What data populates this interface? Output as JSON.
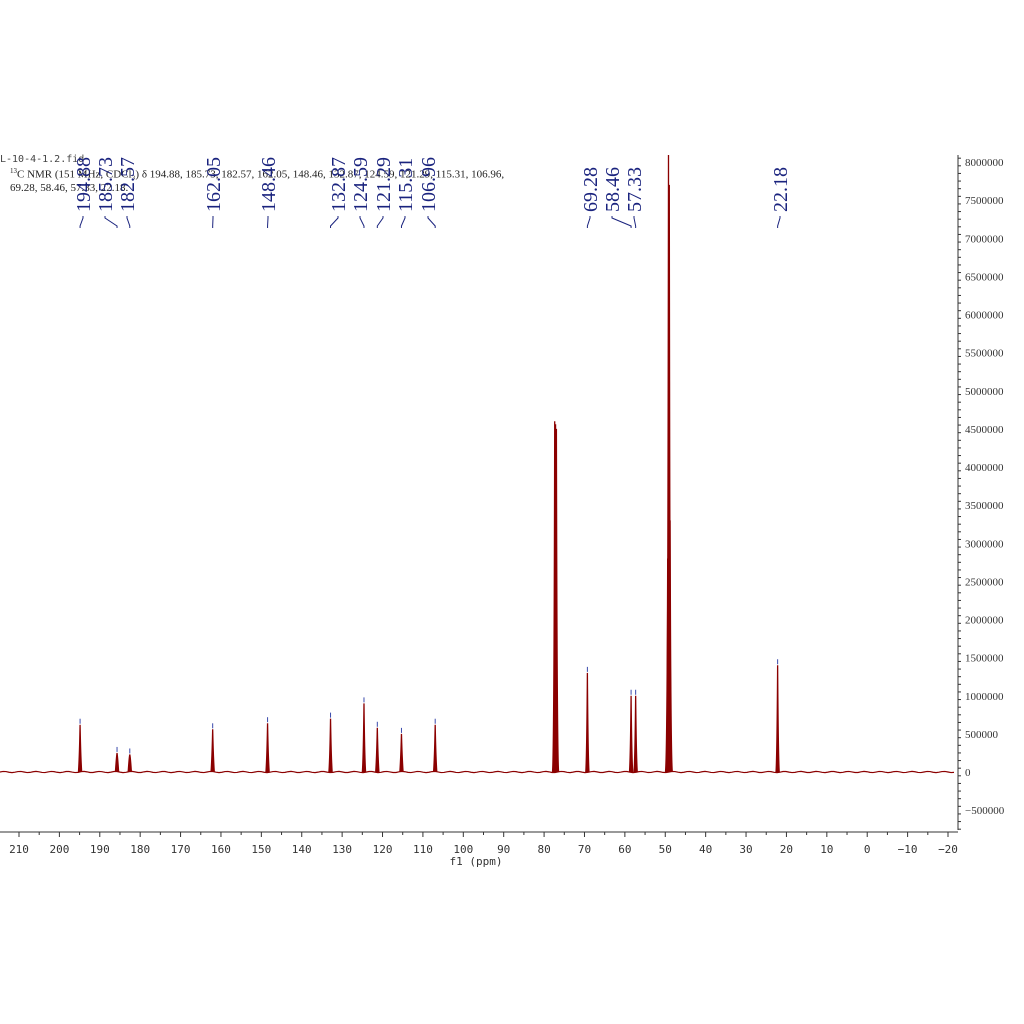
{
  "header": {
    "filename": "L-10-4-1.2.fid",
    "description_prefix": "13",
    "description": "C NMR (151 MHz, CDCl₃) δ 194.88, 185.73, 182.57, 162.05, 148.46, 132.87, 124.59, 121.29, 115.31, 106.96, 69.28, 58.46, 57.33, 22.18."
  },
  "chart_data": {
    "type": "line",
    "title": "",
    "xlabel": "f1 (ppm)",
    "ylabel": "",
    "xlim": [
      211,
      -21
    ],
    "ylim": [
      -750000,
      8150000
    ],
    "x_reversed": true,
    "x_ticks": [
      210,
      200,
      190,
      180,
      170,
      160,
      150,
      140,
      130,
      120,
      110,
      100,
      90,
      80,
      70,
      60,
      50,
      40,
      30,
      20,
      10,
      0,
      -10,
      -20
    ],
    "y_ticks": [
      -500000,
      0,
      500000,
      1000000,
      1500000,
      2000000,
      2500000,
      3000000,
      3500000,
      4000000,
      4500000,
      5000000,
      5500000,
      6000000,
      6500000,
      7000000,
      7500000,
      8000000
    ],
    "y_axis_position": "right",
    "grid": false,
    "line_color": "#8b0000",
    "label_color": "#1a237e",
    "peaks": [
      {
        "ppm": 194.88,
        "intensity": 620000,
        "labeled": true
      },
      {
        "ppm": 185.73,
        "intensity": 250000,
        "labeled": true
      },
      {
        "ppm": 182.57,
        "intensity": 230000,
        "labeled": true
      },
      {
        "ppm": 162.05,
        "intensity": 560000,
        "labeled": true
      },
      {
        "ppm": 148.46,
        "intensity": 640000,
        "labeled": true
      },
      {
        "ppm": 132.87,
        "intensity": 700000,
        "labeled": true
      },
      {
        "ppm": 124.59,
        "intensity": 900000,
        "labeled": true
      },
      {
        "ppm": 121.29,
        "intensity": 580000,
        "labeled": true
      },
      {
        "ppm": 115.31,
        "intensity": 500000,
        "labeled": true
      },
      {
        "ppm": 106.96,
        "intensity": 620000,
        "labeled": true
      },
      {
        "ppm": 77.37,
        "intensity": 4600000,
        "labeled": false
      },
      {
        "ppm": 77.16,
        "intensity": 4560000,
        "labeled": false
      },
      {
        "ppm": 76.95,
        "intensity": 4500000,
        "labeled": false
      },
      {
        "ppm": 69.28,
        "intensity": 1300000,
        "labeled": true
      },
      {
        "ppm": 58.46,
        "intensity": 1000000,
        "labeled": true
      },
      {
        "ppm": 57.33,
        "intensity": 1000000,
        "labeled": true
      },
      {
        "ppm": 49.4,
        "intensity": 2800000,
        "labeled": false
      },
      {
        "ppm": 49.2,
        "intensity": 12000000,
        "labeled": false
      },
      {
        "ppm": 49.0,
        "intensity": 7700000,
        "labeled": false
      },
      {
        "ppm": 48.8,
        "intensity": 3300000,
        "labeled": false
      },
      {
        "ppm": 22.18,
        "intensity": 1400000,
        "labeled": true
      }
    ],
    "peak_labels": [
      "194.88",
      "185.73",
      "182.57",
      "162.05",
      "148.46",
      "132.87",
      "124.59",
      "121.29",
      "115.31",
      "106.96",
      "69.28",
      "58.46",
      "57.33",
      "22.18"
    ]
  }
}
